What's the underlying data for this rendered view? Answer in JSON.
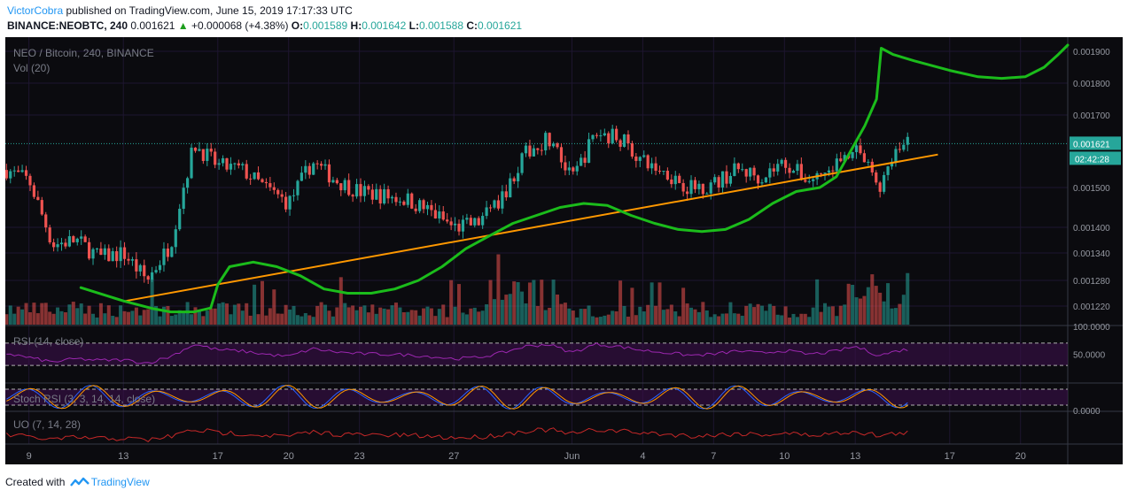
{
  "header": {
    "author": "VictorCobra",
    "published_text": "published on TradingView.com, June 15, 2019 17:17:33 UTC",
    "symbol_line": "BINANCE:NEOBTC, 240",
    "last_price": "0.001621",
    "change": "+0.000068 (+4.38%)",
    "o_label": "O:",
    "o_value": "0.001589",
    "h_label": "H:",
    "h_value": "0.001642",
    "l_label": "L:",
    "l_value": "0.001588",
    "c_label": "C:",
    "c_value": "0.001621"
  },
  "colors": {
    "bull": "#26a69a",
    "bear": "#ef5350",
    "background": "#0b0b0f",
    "grid": "#1e1630",
    "text": "#787b86",
    "trendline": "#ff9800",
    "freehand": "#1bbc1b",
    "rsi": "#9c27b0",
    "stoch_k": "#2962ff",
    "stoch_d": "#ff9800",
    "uo": "#c62828",
    "price_line": "#26a69a"
  },
  "chart_data": {
    "type": "candlestick",
    "title": "NEO / Bitcoin, 240, BINANCE",
    "volume_label": "Vol (20)",
    "y_ticks": [
      "0.001900",
      "0.001800",
      "0.001700",
      "0.001500",
      "0.001400",
      "0.001340",
      "0.001280",
      "0.001220"
    ],
    "y_tick_values": [
      0.0019,
      0.0018,
      0.0017,
      0.0015,
      0.0014,
      0.00134,
      0.00128,
      0.00122
    ],
    "last_price_label": "0.001621",
    "countdown_label": "02:42:28",
    "x_ticks": [
      "9",
      "13",
      "17",
      "20",
      "23",
      "27",
      "Jun",
      "4",
      "7",
      "10",
      "13",
      "17",
      "20"
    ],
    "x_tick_days": [
      9,
      13,
      17,
      20,
      23,
      27,
      32,
      35,
      38,
      41,
      44,
      48,
      51
    ],
    "date_range_days": [
      8,
      53
    ],
    "candle_anchors": {
      "day": [
        8,
        9,
        10,
        11,
        12,
        13,
        14,
        15,
        16,
        17,
        18,
        19,
        20,
        21,
        22,
        23,
        24,
        25,
        26,
        27,
        28,
        29,
        30,
        31,
        32,
        33,
        34,
        35,
        36,
        37,
        38,
        39,
        40,
        41,
        42,
        43,
        44,
        45,
        46
      ],
      "close": [
        0.00155,
        0.00152,
        0.00136,
        0.00137,
        0.00133,
        0.00134,
        0.00128,
        0.00136,
        0.00162,
        0.00156,
        0.00155,
        0.0015,
        0.00146,
        0.00157,
        0.00152,
        0.00149,
        0.00148,
        0.00147,
        0.00144,
        0.0014,
        0.00141,
        0.00147,
        0.00159,
        0.00164,
        0.00152,
        0.00165,
        0.00164,
        0.00157,
        0.00154,
        0.0015,
        0.00151,
        0.00155,
        0.00153,
        0.00157,
        0.00152,
        0.00155,
        0.00162,
        0.0015,
        0.001621
      ]
    },
    "trendline": {
      "from": {
        "day": 13.0,
        "price": 0.001231
      },
      "to": {
        "day": 47.5,
        "price": 0.001591
      }
    },
    "freehand_curve": {
      "points": [
        [
          11.2,
          0.001263
        ],
        [
          13.0,
          0.001232
        ],
        [
          14.2,
          0.001214
        ],
        [
          15.0,
          0.001205
        ],
        [
          16.0,
          0.001205
        ],
        [
          16.7,
          0.001215
        ],
        [
          17.0,
          0.00127
        ],
        [
          17.5,
          0.00131
        ],
        [
          18.5,
          0.00132
        ],
        [
          19.5,
          0.00131
        ],
        [
          20.5,
          0.00129
        ],
        [
          21.5,
          0.00126
        ],
        [
          22.5,
          0.00125
        ],
        [
          23.5,
          0.00125
        ],
        [
          24.5,
          0.00126
        ],
        [
          25.5,
          0.00128
        ],
        [
          26.5,
          0.00131
        ],
        [
          27.5,
          0.00135
        ],
        [
          28.5,
          0.00138
        ],
        [
          29.5,
          0.00141
        ],
        [
          30.5,
          0.00143
        ],
        [
          31.5,
          0.00145
        ],
        [
          32.5,
          0.00146
        ],
        [
          33.5,
          0.001455
        ],
        [
          34.5,
          0.00143
        ],
        [
          35.5,
          0.00141
        ],
        [
          36.5,
          0.001395
        ],
        [
          37.5,
          0.00139
        ],
        [
          38.5,
          0.001395
        ],
        [
          39.5,
          0.00142
        ],
        [
          40.5,
          0.00146
        ],
        [
          41.5,
          0.00149
        ],
        [
          42.5,
          0.0015
        ],
        [
          43.2,
          0.00153
        ],
        [
          43.8,
          0.0016
        ],
        [
          44.4,
          0.00167
        ],
        [
          44.9,
          0.00175
        ],
        [
          45.1,
          0.00191
        ],
        [
          45.6,
          0.00189
        ],
        [
          46.5,
          0.00187
        ],
        [
          48.0,
          0.00184
        ],
        [
          49.2,
          0.00182
        ],
        [
          50.2,
          0.001815
        ],
        [
          51.2,
          0.00182
        ],
        [
          52.0,
          0.00185
        ],
        [
          52.6,
          0.00189
        ],
        [
          53.0,
          0.00192
        ]
      ]
    },
    "indicators": {
      "rsi": {
        "label": "RSI (14, close)",
        "ticks": [
          "100.0000",
          "50.0000"
        ],
        "tick_values": [
          100,
          50
        ],
        "bands": [
          70,
          30
        ],
        "anchors": {
          "day": [
            8,
            9,
            10,
            11,
            12,
            13,
            14,
            15,
            16,
            17,
            18,
            19,
            20,
            21,
            22,
            23,
            24,
            25,
            26,
            27,
            28,
            29,
            30,
            31,
            32,
            33,
            34,
            35,
            36,
            37,
            38,
            39,
            40,
            41,
            42,
            43,
            44,
            45,
            46
          ],
          "value": [
            52,
            44,
            36,
            42,
            39,
            40,
            34,
            46,
            68,
            58,
            56,
            50,
            46,
            60,
            54,
            51,
            50,
            49,
            46,
            42,
            44,
            52,
            64,
            68,
            53,
            68,
            64,
            57,
            53,
            48,
            50,
            56,
            52,
            57,
            50,
            54,
            64,
            48,
            58
          ]
        }
      },
      "stoch_rsi": {
        "label": "Stoch RSI (3, 3, 14, 14, close)",
        "ticks": [
          "0.0000"
        ],
        "tick_values": [
          0
        ],
        "bands": [
          80,
          20
        ]
      },
      "uo": {
        "label": "UO (7, 14, 28)"
      }
    }
  },
  "footer": {
    "created_with": "Created with",
    "brand": "TradingView"
  }
}
